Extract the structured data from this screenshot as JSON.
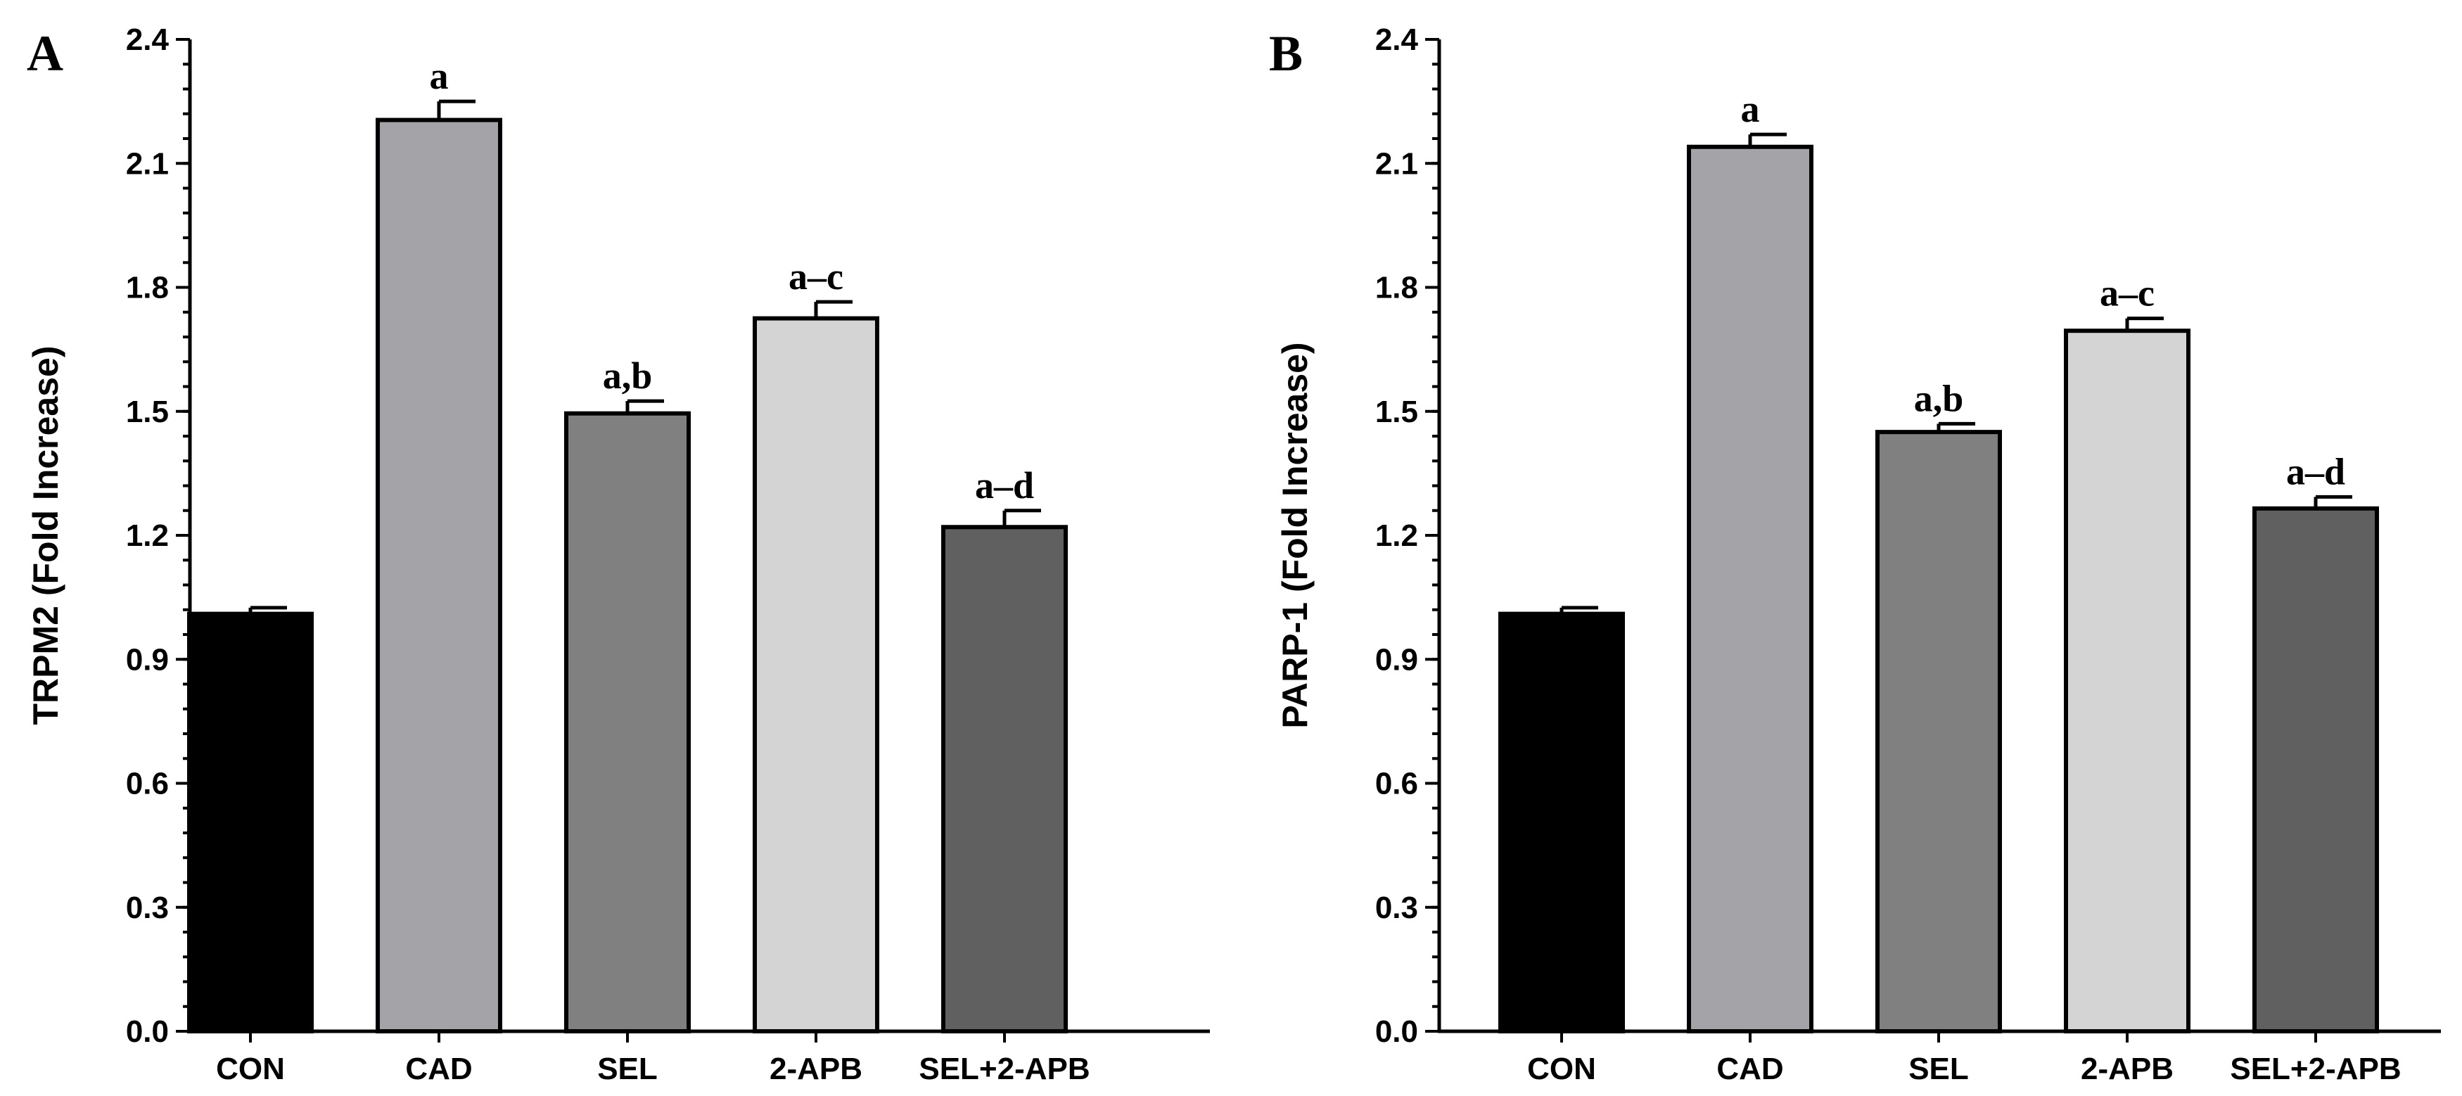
{
  "chart_data": [
    {
      "type": "bar",
      "panel": "A",
      "categories": [
        "CON",
        "CAD",
        "SEL",
        "2-APB",
        "SEL+2-APB"
      ],
      "values": [
        1.01,
        2.205,
        1.495,
        1.725,
        1.22
      ],
      "errors": [
        0.015,
        0.045,
        0.03,
        0.04,
        0.04
      ],
      "significance": [
        "",
        "a",
        "a,b",
        "a–c",
        "a–d"
      ],
      "colors": [
        "#000000",
        "#a3a3a8",
        "#808080",
        "#d4d4d4",
        "#606060"
      ],
      "title": "",
      "xlabel": "",
      "ylabel": "TRPM2 (Fold Increase)",
      "ylim": [
        0,
        2.4
      ],
      "yticks": [
        0.0,
        0.3,
        0.6,
        0.9,
        1.2,
        1.5,
        1.8,
        2.1,
        2.4
      ],
      "ytick_labels": [
        "0.0",
        "0.3",
        "0.6",
        "0.9",
        "1.2",
        "1.5",
        "1.8",
        "2.1",
        "2.4"
      ],
      "grid": false
    },
    {
      "type": "bar",
      "panel": "B",
      "categories": [
        "CON",
        "CAD",
        "SEL",
        "2-APB",
        "SEL+2-APB"
      ],
      "values": [
        1.01,
        2.14,
        1.45,
        1.695,
        1.265
      ],
      "errors": [
        0.015,
        0.03,
        0.02,
        0.03,
        0.028
      ],
      "significance": [
        "",
        "a",
        "a,b",
        "a–c",
        "a–d"
      ],
      "colors": [
        "#000000",
        "#a3a3a8",
        "#808080",
        "#d4d4d4",
        "#606060"
      ],
      "title": "",
      "xlabel": "",
      "ylabel": "PARP-1 (Fold Increase)",
      "ylim": [
        0,
        2.4
      ],
      "yticks": [
        0.0,
        0.3,
        0.6,
        0.9,
        1.2,
        1.5,
        1.8,
        2.1,
        2.4
      ],
      "ytick_labels": [
        "0.0",
        "0.3",
        "0.6",
        "0.9",
        "1.2",
        "1.5",
        "1.8",
        "2.1",
        "2.4"
      ],
      "grid": false
    }
  ]
}
